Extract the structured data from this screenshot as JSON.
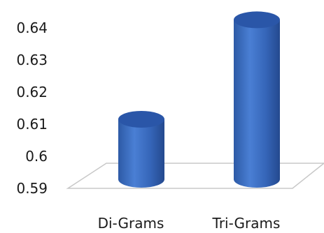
{
  "chart_data": {
    "type": "bar",
    "categories": [
      "Di-Grams",
      "Tri-Grams"
    ],
    "values": [
      0.61,
      0.641
    ],
    "ylim": [
      0.59,
      0.64
    ],
    "yticks": [
      "0.59",
      "0.6",
      "0.61",
      "0.62",
      "0.63",
      "0.64"
    ],
    "title": "",
    "xlabel": "",
    "ylabel": "",
    "grid": false,
    "legend": "none",
    "bar_color": "#3a6cc0",
    "bar_top_color": "#2a56a8",
    "floor_color": "#c8c8c8"
  }
}
